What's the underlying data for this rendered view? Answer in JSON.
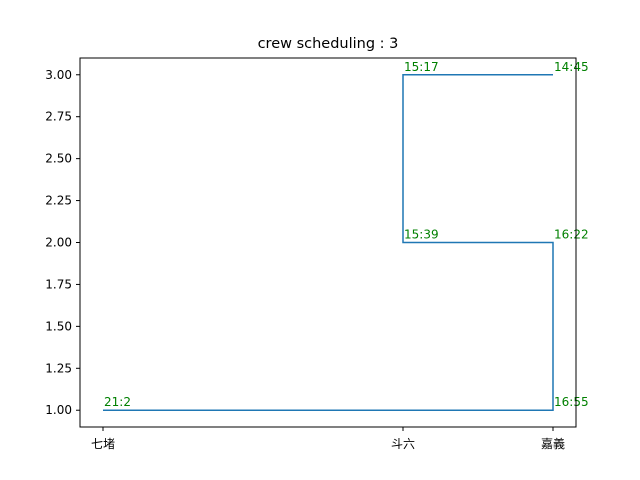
{
  "chart_data": {
    "type": "line",
    "title": "crew scheduling : 3",
    "xlabel": "",
    "ylabel": "",
    "x_categories": [
      "七堵",
      "斗六",
      "嘉義"
    ],
    "ylim": [
      0.9,
      3.1
    ],
    "yticks": [
      "1.00",
      "1.25",
      "1.50",
      "1.75",
      "2.00",
      "2.25",
      "2.50",
      "2.75",
      "3.00"
    ],
    "grid": false,
    "colors": {
      "line": "#1f77b4",
      "labels": "#008000"
    },
    "series": [
      {
        "values": [
          {
            "x": "七堵",
            "y": 1,
            "label": "21:2"
          },
          {
            "x": "嘉義",
            "y": 1,
            "label": "16:55"
          },
          {
            "x": "嘉義",
            "y": 2,
            "label": "16:22"
          },
          {
            "x": "斗六",
            "y": 2,
            "label": "15:39"
          },
          {
            "x": "斗六",
            "y": 3,
            "label": "15:17"
          },
          {
            "x": "嘉義",
            "y": 3,
            "label": "14:45"
          }
        ]
      }
    ]
  }
}
